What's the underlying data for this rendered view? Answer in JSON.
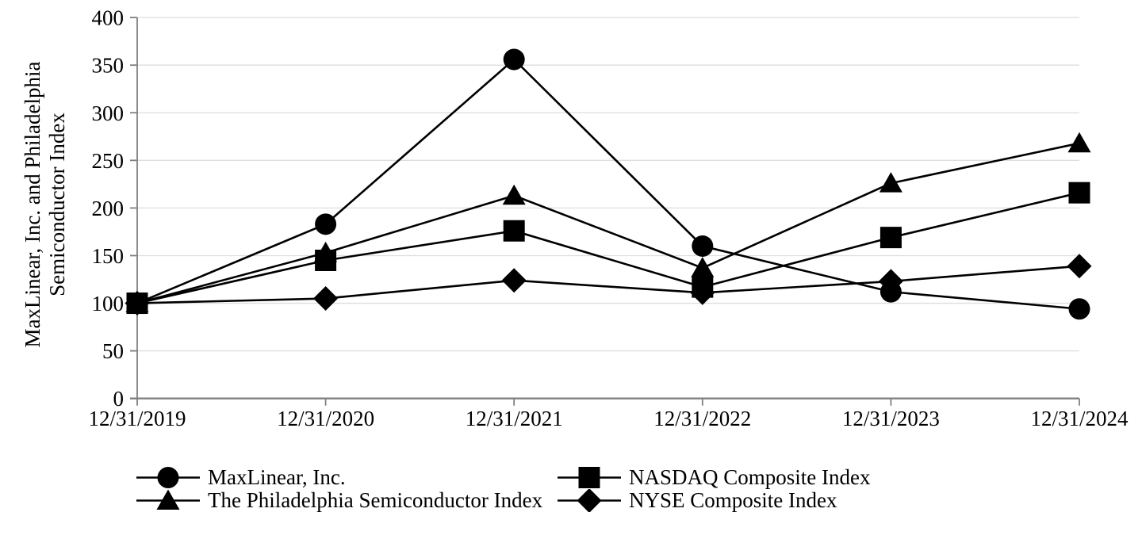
{
  "page": {
    "background": "#ffffff"
  },
  "chart_data": {
    "type": "line",
    "title": "",
    "y_axis_title_lines": [
      "MaxLinear, Inc. and Philadelphia",
      "Semiconductor Index"
    ],
    "categories": [
      "12/31/2019",
      "12/31/2020",
      "12/31/2021",
      "12/31/2022",
      "12/31/2023",
      "12/31/2024"
    ],
    "y_ticks": [
      0,
      50,
      100,
      150,
      200,
      250,
      300,
      350,
      400
    ],
    "ylim": [
      0,
      400
    ],
    "grid": "horizontal-only",
    "legend_position": "bottom",
    "series": [
      {
        "name": "MaxLinear, Inc.",
        "marker": "circle",
        "values": [
          100,
          183,
          356,
          160,
          112,
          94
        ]
      },
      {
        "name": "NASDAQ Composite Index",
        "marker": "square",
        "values": [
          100,
          145,
          176,
          117,
          169,
          216
        ]
      },
      {
        "name": "The Philadelphia Semiconductor Index",
        "marker": "triangle",
        "values": [
          100,
          153,
          213,
          137,
          226,
          268
        ]
      },
      {
        "name": "NYSE Composite Index",
        "marker": "diamond",
        "values": [
          100,
          105,
          124,
          111,
          123,
          139
        ]
      }
    ],
    "colors": {
      "series": "#000000",
      "axis": "#808080",
      "gridline": "#dedede",
      "text": "#000000"
    }
  },
  "legend": {
    "grid_order_series_indexes": [
      0,
      1,
      2,
      3
    ]
  }
}
